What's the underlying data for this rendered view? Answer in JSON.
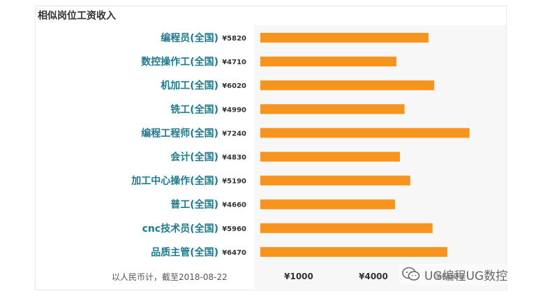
{
  "title": "相似岗位工资收入",
  "footnote": "以人民币计，截至2018-08-22",
  "watermark": {
    "text": "UG编程UG数控",
    "icon": "wechat-icon"
  },
  "colors": {
    "bar": "#f7941d",
    "label": "#1f7a8c",
    "panel": "#f7f7f7"
  },
  "chart_data": {
    "type": "bar",
    "orientation": "horizontal",
    "categories": [
      "编程员(全国)",
      "数控操作工(全国)",
      "机加工(全国)",
      "铣工(全国)",
      "编程工程师(全国)",
      "会计(全国)",
      "加工中心操作(全国)",
      "普工(全国)",
      "cnc技术员(全国)",
      "品质主管(全国)"
    ],
    "value_labels": [
      "¥5820",
      "¥4710",
      "¥6020",
      "¥4990",
      "¥7240",
      "¥4830",
      "¥5190",
      "¥4660",
      "¥5960",
      "¥6470"
    ],
    "values": [
      5820,
      4710,
      6020,
      4990,
      7240,
      4830,
      5190,
      4660,
      5960,
      6470
    ],
    "x_ticks": [
      "¥1000",
      "¥4000",
      "¥6000"
    ],
    "x_tick_values": [
      1000,
      4000,
      6000
    ],
    "xlim": [
      1000,
      8500
    ],
    "grid": false,
    "title": "相似岗位工资收入"
  }
}
